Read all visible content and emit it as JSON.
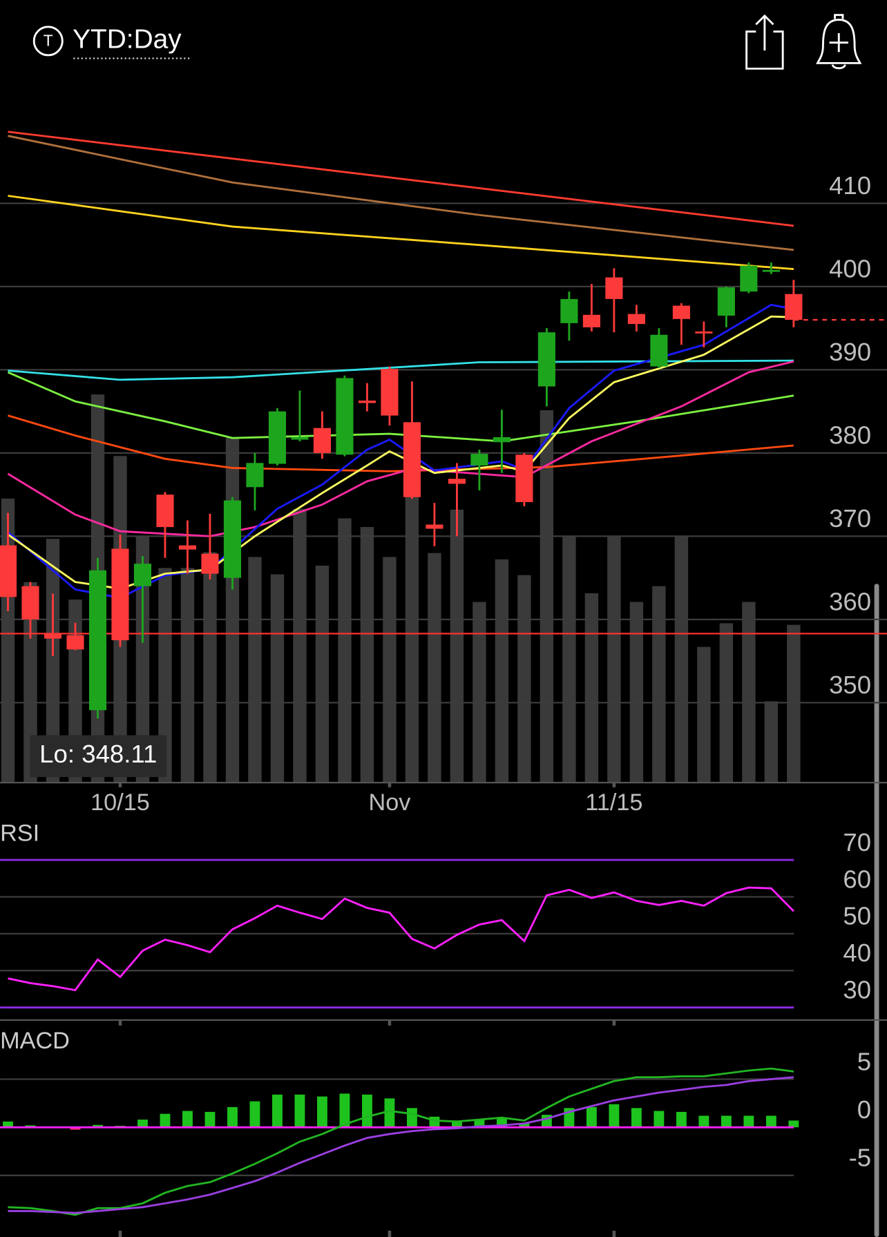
{
  "header": {
    "icon_letter": "T",
    "title": "YTD:Day"
  },
  "chart_data": [
    {
      "type": "candlestick",
      "categories": [
        null,
        null,
        null,
        null,
        null,
        "10/15",
        null,
        null,
        null,
        null,
        null,
        null,
        null,
        null,
        null,
        null,
        null,
        "Nov",
        null,
        null,
        null,
        null,
        null,
        null,
        null,
        null,
        null,
        "11/15",
        null,
        null,
        null,
        null,
        null,
        null,
        null,
        null
      ],
      "open": [
        368.9,
        364.0,
        358.3,
        358.1,
        349.1,
        368.5,
        364.0,
        375.0,
        368.9,
        367.9,
        365.0,
        375.9,
        378.7,
        381.6,
        383.0,
        379.8,
        386.3,
        390.1,
        383.7,
        371.4,
        376.9,
        378.5,
        381.3,
        379.8,
        388.0,
        395.6,
        396.6,
        401.1,
        396.7,
        390.4,
        397.7,
        394.6,
        396.5,
        399.4,
        401.8,
        399.1
      ],
      "high": [
        372.8,
        364.5,
        363.1,
        359.6,
        367.4,
        370.2,
        367.6,
        375.3,
        371.9,
        372.7,
        374.7,
        380.0,
        385.4,
        387.5,
        385.0,
        389.3,
        388.4,
        390.4,
        388.6,
        374.0,
        378.8,
        380.4,
        385.2,
        380.0,
        395.0,
        399.4,
        400.3,
        402.2,
        397.8,
        395.0,
        398.0,
        395.8,
        400.0,
        402.9,
        402.9,
        400.8
      ],
      "low": [
        361.0,
        357.7,
        355.6,
        356.3,
        348.11,
        356.7,
        357.2,
        367.4,
        365.5,
        364.8,
        363.6,
        373.1,
        378.5,
        381.4,
        379.3,
        379.6,
        385.0,
        383.3,
        374.5,
        368.8,
        370.0,
        375.5,
        377.6,
        373.6,
        385.6,
        393.5,
        394.6,
        394.5,
        394.6,
        390.2,
        393.0,
        392.7,
        395.1,
        399.2,
        401.5,
        395.1
      ],
      "close": [
        362.7,
        360.0,
        357.7,
        356.4,
        365.9,
        357.5,
        366.7,
        371.1,
        368.4,
        365.5,
        374.3,
        378.8,
        385.0,
        381.9,
        380.0,
        389.0,
        386.0,
        384.5,
        374.7,
        370.9,
        376.3,
        379.9,
        381.9,
        374.1,
        394.5,
        398.5,
        395.1,
        398.5,
        395.5,
        394.2,
        396.1,
        394.4,
        399.9,
        402.5,
        402.0,
        396.0
      ],
      "volume": [
        36.0,
        25.4,
        30.9,
        23.2,
        49.2,
        41.4,
        31.2,
        27.2,
        27.2,
        29.2,
        43.7,
        28.6,
        26.4,
        34.7,
        27.5,
        33.5,
        32.4,
        28.6,
        39.2,
        29.1,
        34.6,
        22.9,
        28.3,
        26.3,
        47.2,
        31.3,
        24.0,
        31.2,
        22.9,
        24.9,
        31.2,
        17.2,
        20.2,
        22.9,
        10.3,
        20.0
      ],
      "volume_lim": [
        0,
        88.2
      ],
      "up_color": "#1ea51e",
      "down_color": "#fc3a3a",
      "volume_color": "#3a3a3a",
      "ylim": [
        340.4,
        424.0
      ],
      "yticks": [
        350,
        360,
        370,
        380,
        390,
        400,
        410
      ],
      "grid": true,
      "reference_line": 358.3,
      "reference_color": "#ff3030",
      "last_price": 396.0,
      "low_label": {
        "prefix": "Lo:",
        "value": 348.11
      },
      "moving_averages": [
        {
          "color": "#ff3b30",
          "x": [
            0,
            35
          ],
          "values": [
            418.6,
            407.3
          ]
        },
        {
          "color": "#b0703c",
          "x": [
            0,
            10,
            21,
            35
          ],
          "values": [
            418.1,
            412.5,
            408.6,
            404.4
          ]
        },
        {
          "color": "#ffd21f",
          "x": [
            0,
            10,
            21,
            35
          ],
          "values": [
            410.9,
            407.2,
            405.0,
            402.1
          ]
        },
        {
          "color": "#33e0e6",
          "x": [
            0,
            5,
            10,
            21,
            35
          ],
          "values": [
            389.9,
            388.8,
            389.1,
            390.9,
            391.1
          ]
        },
        {
          "color": "#7cf040",
          "x": [
            0,
            3,
            7,
            10,
            17,
            22,
            28,
            35
          ],
          "values": [
            389.7,
            386.2,
            383.8,
            381.8,
            382.3,
            381.4,
            383.8,
            386.9
          ]
        },
        {
          "color": "#ff4a10",
          "x": [
            0,
            3,
            7,
            10,
            17,
            24,
            30,
            35
          ],
          "values": [
            384.5,
            382.1,
            379.3,
            378.2,
            377.8,
            378.3,
            379.7,
            380.9
          ]
        },
        {
          "color": "#ff2aa0",
          "x": [
            0,
            3,
            5,
            9,
            11,
            14,
            16,
            18,
            23,
            26,
            30,
            33,
            35
          ],
          "values": [
            377.5,
            372.6,
            370.6,
            370.0,
            371.1,
            373.8,
            376.6,
            378.1,
            377.1,
            381.4,
            385.6,
            389.7,
            391.0
          ]
        },
        {
          "color": "#1a1aff",
          "x": [
            0,
            3,
            5,
            7,
            9,
            12,
            14,
            16,
            17,
            19,
            22,
            23,
            25,
            27,
            31,
            34,
            35
          ],
          "values": [
            370.5,
            363.6,
            362.6,
            365.3,
            366.0,
            373.3,
            376.2,
            380.4,
            381.6,
            377.9,
            379.0,
            378.0,
            385.4,
            389.9,
            393.0,
            397.8,
            397.3
          ]
        },
        {
          "color": "#ffff60",
          "x": [
            0,
            3,
            5,
            7,
            9,
            11,
            14,
            16,
            17,
            19,
            22,
            23,
            25,
            27,
            31,
            34,
            35
          ],
          "values": [
            370.2,
            364.5,
            363.7,
            365.5,
            366.0,
            370.0,
            375.2,
            378.5,
            380.2,
            377.6,
            378.5,
            377.8,
            384.2,
            388.5,
            391.8,
            396.4,
            396.3
          ]
        }
      ]
    },
    {
      "type": "line",
      "title": "RSI",
      "color": "#ff20ff",
      "values": [
        37.9,
        36.6,
        35.8,
        34.7,
        43.0,
        38.3,
        45.4,
        48.4,
        46.9,
        45.0,
        51.2,
        54.2,
        57.6,
        55.7,
        54.0,
        59.5,
        57.0,
        55.7,
        48.6,
        46.0,
        49.7,
        52.5,
        53.7,
        48.0,
        60.4,
        61.9,
        59.7,
        61.2,
        58.9,
        57.8,
        58.9,
        57.6,
        61.0,
        62.5,
        62.3,
        56.1
      ],
      "ylim": [
        26.6,
        80.7
      ],
      "yticks": [
        30,
        40,
        50,
        60,
        70
      ],
      "levels": [
        30,
        70
      ],
      "level_color": "#8a2be2"
    },
    {
      "type": "macd",
      "title": "MACD",
      "values": [
        0.6,
        0.2,
        0,
        -0.25,
        0.25,
        0.15,
        0.8,
        1.4,
        1.7,
        1.6,
        2.1,
        2.7,
        3.4,
        3.4,
        3.2,
        3.5,
        3.4,
        3.0,
        2.0,
        1.1,
        0.7,
        0.8,
        1.0,
        0.4,
        1.3,
        2.0,
        2.1,
        2.4,
        2.0,
        1.7,
        1.6,
        1.2,
        1.2,
        1.2,
        1.2,
        0.7
      ],
      "up_color": "#1ec31e",
      "down_color": "#ff2a6a",
      "series": [
        {
          "color": "#22b522",
          "values": [
            -8.3,
            -8.4,
            -8.7,
            -9.1,
            -8.4,
            -8.4,
            -7.9,
            -6.8,
            -6.1,
            -5.7,
            -4.8,
            -3.8,
            -2.7,
            -1.5,
            -0.7,
            0.3,
            1.1,
            1.7,
            1.4,
            0.7,
            0.6,
            0.8,
            1.0,
            0.7,
            2.0,
            3.2,
            4.0,
            4.8,
            5.2,
            5.2,
            5.3,
            5.3,
            5.6,
            5.9,
            6.1,
            5.8
          ]
        },
        {
          "color": "#9a3fe0",
          "values": [
            -8.7,
            -8.7,
            -8.8,
            -8.9,
            -8.7,
            -8.5,
            -8.3,
            -7.9,
            -7.5,
            -7.0,
            -6.3,
            -5.6,
            -4.7,
            -3.7,
            -2.8,
            -1.9,
            -1.1,
            -0.7,
            -0.4,
            -0.2,
            -0.1,
            0.1,
            0.2,
            0.4,
            0.9,
            1.6,
            2.2,
            2.8,
            3.2,
            3.6,
            3.9,
            4.2,
            4.4,
            4.8,
            5.0,
            5.2
          ]
        }
      ],
      "zero_color": "#ff20ff",
      "ylim": [
        -11.4,
        9.75
      ],
      "yticks": [
        -5,
        0,
        5
      ]
    }
  ]
}
